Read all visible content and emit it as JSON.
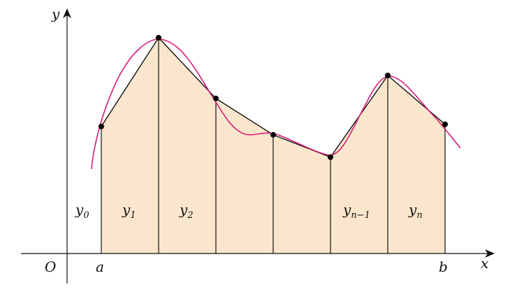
{
  "diagram": {
    "axes": {
      "x_label": "x",
      "y_label": "y",
      "origin_label": "O",
      "a_label": "a",
      "b_label": "b"
    },
    "ordinates": [
      {
        "base": "y",
        "sub": "0"
      },
      {
        "base": "y",
        "sub": "1"
      },
      {
        "base": "y",
        "sub": "2"
      },
      {
        "base": "y",
        "sub": "n−1"
      },
      {
        "base": "y",
        "sub": "n"
      }
    ],
    "colors": {
      "fill": "#f9e6cc",
      "curve": "#d81b7a",
      "lines": "#111111",
      "points": "#000000"
    }
  }
}
